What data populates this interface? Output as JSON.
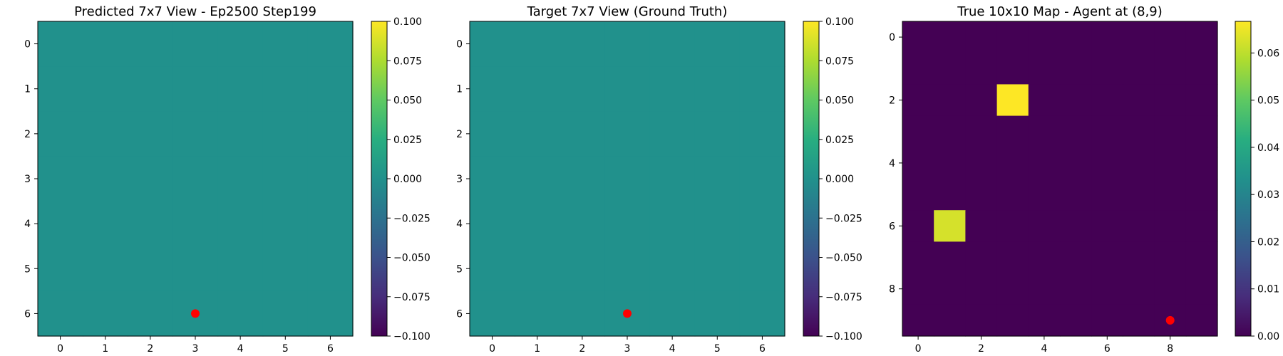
{
  "chart_data": [
    {
      "type": "heatmap",
      "title": "Predicted 7x7 View - Ep2500 Step199",
      "rows": 7,
      "cols": 7,
      "values": [
        [
          0,
          0,
          0,
          0,
          0,
          0,
          0
        ],
        [
          0,
          0,
          0,
          0,
          0,
          0,
          0
        ],
        [
          0,
          0,
          0,
          0,
          0,
          0,
          0
        ],
        [
          0,
          0,
          0,
          0,
          0,
          0,
          0
        ],
        [
          0,
          0,
          0,
          0,
          0,
          0,
          0
        ],
        [
          0,
          0,
          0,
          0,
          0,
          0,
          0
        ],
        [
          0,
          0,
          0,
          0,
          0,
          0,
          0
        ]
      ],
      "xticks": [
        "0",
        "1",
        "2",
        "3",
        "4",
        "5",
        "6"
      ],
      "yticks": [
        "0",
        "1",
        "2",
        "3",
        "4",
        "5",
        "6"
      ],
      "agent": {
        "x": 3,
        "y": 6,
        "color": "#ff0000"
      },
      "colorbar": {
        "min": -0.1,
        "max": 0.1,
        "ticks": [
          "0.100",
          "0.075",
          "0.050",
          "0.025",
          "0.000",
          "−0.025",
          "−0.050",
          "−0.075",
          "−0.100"
        ],
        "tick_values": [
          0.1,
          0.075,
          0.05,
          0.025,
          0,
          -0.025,
          -0.05,
          -0.075,
          -0.1
        ]
      },
      "colormap": "viridis"
    },
    {
      "type": "heatmap",
      "title": "Target 7x7 View (Ground Truth)",
      "rows": 7,
      "cols": 7,
      "values": [
        [
          0,
          0,
          0,
          0,
          0,
          0,
          0
        ],
        [
          0,
          0,
          0,
          0,
          0,
          0,
          0
        ],
        [
          0,
          0,
          0,
          0,
          0,
          0,
          0
        ],
        [
          0,
          0,
          0,
          0,
          0,
          0,
          0
        ],
        [
          0,
          0,
          0,
          0,
          0,
          0,
          0
        ],
        [
          0,
          0,
          0,
          0,
          0,
          0,
          0
        ],
        [
          0,
          0,
          0,
          0,
          0,
          0,
          0
        ]
      ],
      "xticks": [
        "0",
        "1",
        "2",
        "3",
        "4",
        "5",
        "6"
      ],
      "yticks": [
        "0",
        "1",
        "2",
        "3",
        "4",
        "5",
        "6"
      ],
      "agent": {
        "x": 3,
        "y": 6,
        "color": "#ff0000"
      },
      "colorbar": {
        "min": -0.1,
        "max": 0.1,
        "ticks": [
          "0.100",
          "0.075",
          "0.050",
          "0.025",
          "0.000",
          "−0.025",
          "−0.050",
          "−0.075",
          "−0.100"
        ],
        "tick_values": [
          0.1,
          0.075,
          0.05,
          0.025,
          0,
          -0.025,
          -0.05,
          -0.075,
          -0.1
        ]
      },
      "colormap": "viridis"
    },
    {
      "type": "heatmap",
      "title": "True 10x10 Map - Agent at (8,9)",
      "rows": 10,
      "cols": 10,
      "values": [
        [
          0,
          0,
          0,
          0,
          0,
          0,
          0,
          0,
          0,
          0
        ],
        [
          0,
          0,
          0,
          0,
          0,
          0,
          0,
          0,
          0,
          0
        ],
        [
          0,
          0,
          0,
          0.0667,
          0,
          0,
          0,
          0,
          0,
          0
        ],
        [
          0,
          0,
          0,
          0,
          0,
          0,
          0,
          0,
          0,
          0
        ],
        [
          0,
          0,
          0,
          0,
          0,
          0,
          0,
          0,
          0,
          0
        ],
        [
          0,
          0,
          0,
          0,
          0,
          0,
          0,
          0,
          0,
          0
        ],
        [
          0,
          0.0625,
          0,
          0,
          0,
          0,
          0,
          0,
          0,
          0
        ],
        [
          0,
          0,
          0,
          0,
          0,
          0,
          0,
          0,
          0,
          0
        ],
        [
          0,
          0,
          0,
          0,
          0,
          0,
          0,
          0,
          0,
          0
        ],
        [
          0,
          0,
          0,
          0,
          0,
          0,
          0,
          0,
          0,
          0
        ]
      ],
      "xticks": [
        "0",
        "2",
        "4",
        "6",
        "8"
      ],
      "xtick_values": [
        0,
        2,
        4,
        6,
        8
      ],
      "yticks": [
        "0",
        "2",
        "4",
        "6",
        "8"
      ],
      "ytick_values": [
        0,
        2,
        4,
        6,
        8
      ],
      "agent": {
        "x": 8,
        "y": 9,
        "color": "#ff0000"
      },
      "colorbar": {
        "min": 0,
        "max": 0.0667,
        "ticks": [
          "0.06",
          "0.05",
          "0.04",
          "0.03",
          "0.02",
          "0.01",
          "0.00"
        ],
        "tick_values": [
          0.06,
          0.05,
          0.04,
          0.03,
          0.02,
          0.01,
          0
        ]
      },
      "colormap": "viridis"
    }
  ]
}
